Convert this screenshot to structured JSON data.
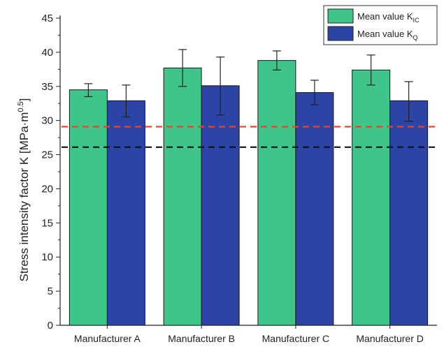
{
  "chart_data": {
    "type": "bar",
    "categories": [
      "Manufacturer A",
      "Manufacturer B",
      "Manufacturer C",
      "Manufacturer D"
    ],
    "series": [
      {
        "name": "Mean value K_IC",
        "legend_main": "Mean value K",
        "legend_sub": "IC",
        "color": "#3fc48a",
        "values": [
          34.5,
          37.7,
          38.8,
          37.4
        ],
        "err_low": [
          33.5,
          35.0,
          37.4,
          35.2
        ],
        "err_high": [
          35.4,
          40.4,
          40.2,
          39.6
        ]
      },
      {
        "name": "Mean value K_Q",
        "legend_main": "Mean value K",
        "legend_sub": "Q",
        "color": "#2b44a6",
        "values": [
          32.9,
          35.1,
          34.1,
          32.9
        ],
        "err_low": [
          30.5,
          30.8,
          32.3,
          29.9
        ],
        "err_high": [
          35.2,
          39.3,
          35.9,
          35.7
        ]
      }
    ],
    "reference_lines": [
      {
        "y": 29.1,
        "color": "#e8452c",
        "style": "dashed"
      },
      {
        "y": 26.1,
        "color": "#111111",
        "style": "dashed"
      }
    ],
    "ylabel_main": "Stress intensity factor K [MPa·m",
    "ylabel_sup": "0.5",
    "ylabel_end": "]",
    "xlabel": "",
    "ylim": [
      0,
      45
    ],
    "yticks": [
      "0",
      "5",
      "10",
      "15",
      "20",
      "25",
      "30",
      "35",
      "40",
      "45"
    ],
    "legend_position": "top-right",
    "grid": false
  }
}
